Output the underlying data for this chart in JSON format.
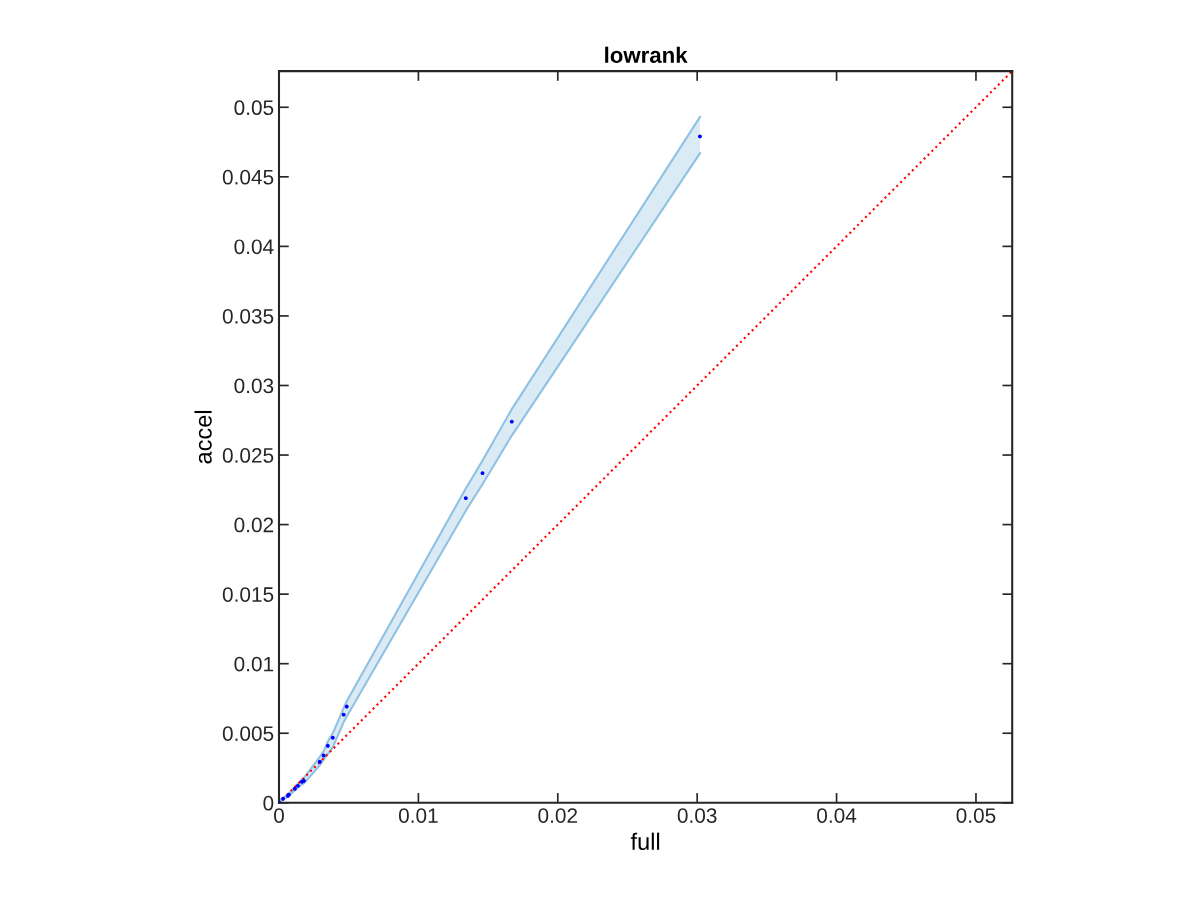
{
  "chart_data": {
    "type": "scatter",
    "title": "lowrank",
    "xlabel": "full",
    "ylabel": "accel",
    "xlim": [
      0,
      0.0526
    ],
    "ylim": [
      0,
      0.0526
    ],
    "xticks": [
      0,
      0.01,
      0.02,
      0.03,
      0.04,
      0.05
    ],
    "yticks": [
      0,
      0.005,
      0.01,
      0.015,
      0.02,
      0.025,
      0.03,
      0.035,
      0.04,
      0.045,
      0.05
    ],
    "grid": false,
    "legend": false,
    "series": [
      {
        "type": "line",
        "color": "#8fc1e3",
        "values": [
          null,
          null,
          null,
          null,
          null,
          null,
          null,
          null,
          null,
          null,
          null,
          null,
          null,
          null,
          null,
          null,
          null,
          null
        ],
        "x": [
          0,
          0.00029,
          0.00064,
          0.00071,
          0.00114,
          0.00136,
          0.00164,
          0.00179,
          0.00293,
          0.0032,
          0.0035,
          0.00386,
          0.00464,
          0.00486,
          0.0134,
          0.0146,
          0.0167,
          0.0302
        ],
        "lower": [
          0,
          0.00022,
          0.00044,
          0.0005,
          0.0009,
          0.0011,
          0.0013,
          0.0014,
          0.0027,
          0.0031,
          0.0035,
          0.004,
          0.0058,
          0.0062,
          0.021,
          0.0229,
          0.0264,
          0.0467
        ],
        "upper": [
          0.0002,
          0.00036,
          0.0006,
          0.00068,
          0.00115,
          0.00138,
          0.0017,
          0.0018,
          0.0033,
          0.0037,
          0.0044,
          0.005,
          0.0068,
          0.0073,
          0.0226,
          0.0246,
          0.0283,
          0.0493
        ]
      },
      {
        "type": "line",
        "color": "#8fc1e3",
        "x": [
          0,
          0.00029,
          0.00064,
          0.00071,
          0.00114,
          0.00136,
          0.00164,
          0.00179,
          0.00293,
          0.0032,
          0.0035,
          0.00386,
          0.00464,
          0.00486,
          0.0134,
          0.0146,
          0.0167,
          0.0302
        ],
        "values": [
          0,
          0.00022,
          0.00044,
          0.0005,
          0.0009,
          0.0011,
          0.0013,
          0.0014,
          0.0027,
          0.0031,
          0.0035,
          0.004,
          0.0058,
          0.0062,
          0.021,
          0.0229,
          0.0264,
          0.0467
        ]
      },
      {
        "type": "line",
        "color": "#8fc1e3",
        "x": [
          0,
          0.00029,
          0.00064,
          0.00071,
          0.00114,
          0.00136,
          0.00164,
          0.00179,
          0.00293,
          0.0032,
          0.0035,
          0.00386,
          0.00464,
          0.00486,
          0.0134,
          0.0146,
          0.0167,
          0.0302
        ],
        "values": [
          0.0002,
          0.00036,
          0.0006,
          0.00068,
          0.00115,
          0.00138,
          0.0017,
          0.0018,
          0.0033,
          0.0037,
          0.0044,
          0.005,
          0.0068,
          0.0073,
          0.0226,
          0.0246,
          0.0283,
          0.0493
        ]
      },
      {
        "color": "#0000ff",
        "marker": "circle",
        "x": [
          0,
          0.00029,
          0.00064,
          0.00071,
          0.00114,
          0.00136,
          0.00164,
          0.00179,
          0.00293,
          0.0032,
          0.0035,
          0.00386,
          0.00464,
          0.00486,
          0.0134,
          0.0146,
          0.0167,
          0.0302
        ],
        "values": [
          0,
          0.00029,
          0.0005,
          0.00058,
          0.00101,
          0.00122,
          0.00151,
          0.00158,
          0.00295,
          0.0034,
          0.0041,
          0.00468,
          0.00634,
          0.00692,
          0.0219,
          0.0237,
          0.0274,
          0.0479
        ]
      },
      {
        "type": "line",
        "color": "#ff0000",
        "line_style": "dotted",
        "x": [
          0,
          0.0526
        ],
        "values": [
          0,
          0.0526
        ]
      }
    ]
  }
}
